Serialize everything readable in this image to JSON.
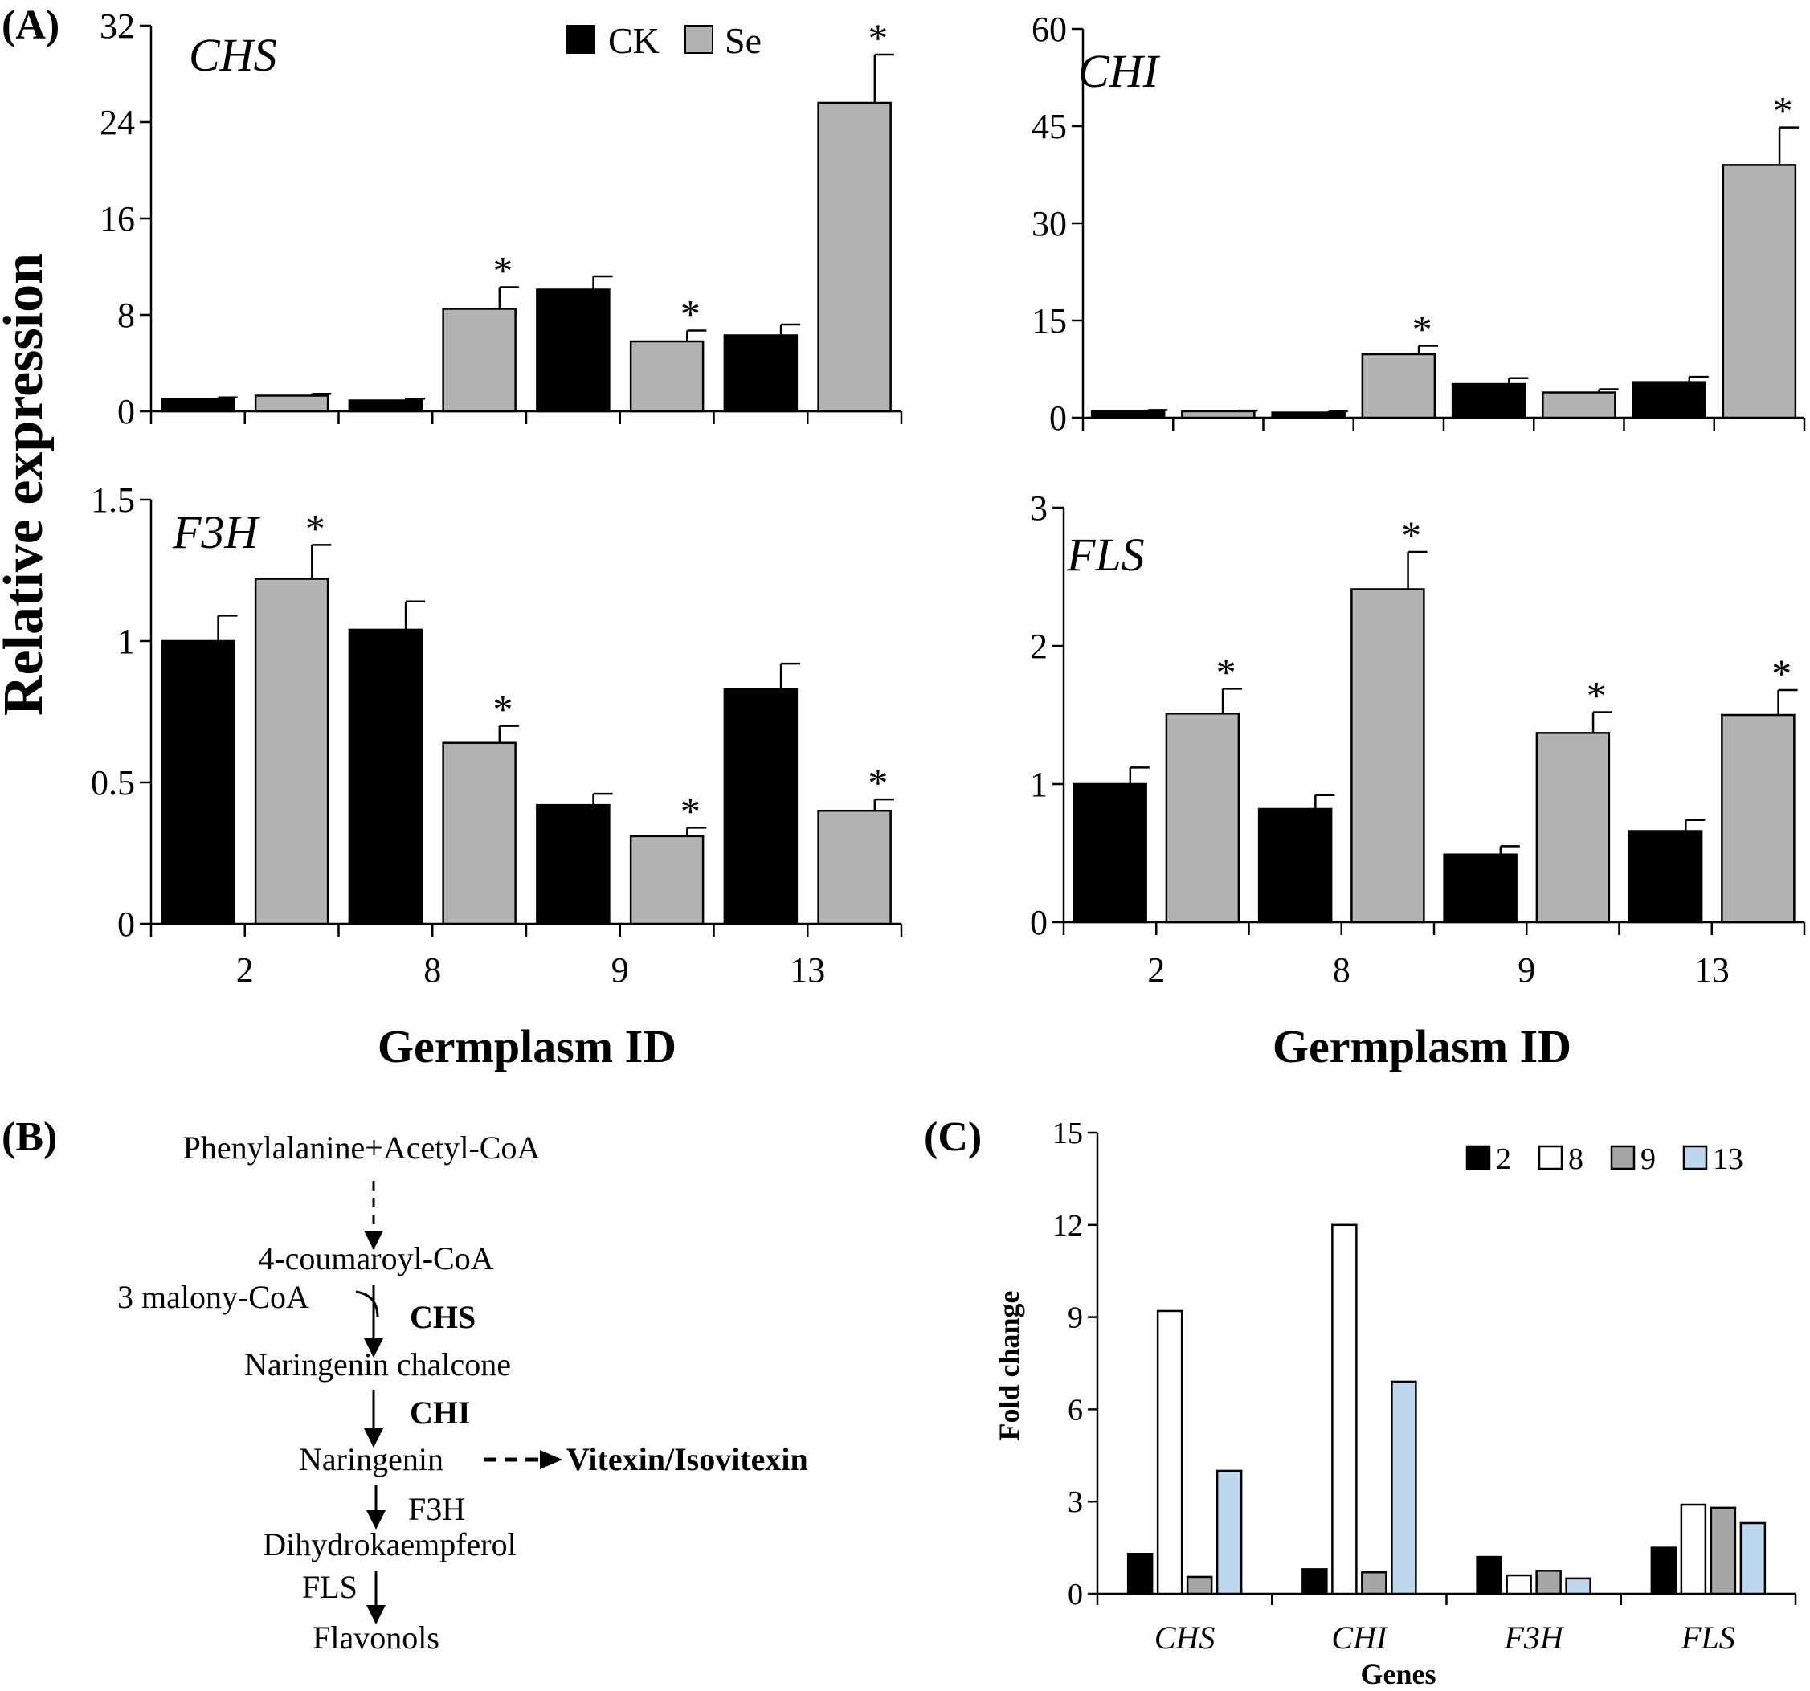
{
  "panel_labels": {
    "a": "(A)",
    "b": "(B)",
    "c": "(C)"
  },
  "panel_a": {
    "ylabel": "Relative expression",
    "xlabel": "Germplasm ID",
    "legend": [
      {
        "label": "CK",
        "color": "#000000"
      },
      {
        "label": "Se",
        "color": "#b3b3b3"
      }
    ]
  },
  "chart_data": [
    {
      "id": "chs",
      "type": "bar",
      "title": "CHS",
      "categories": [
        "2",
        "8",
        "9",
        "13"
      ],
      "yticks": [
        "0",
        "8",
        "16",
        "24",
        "32"
      ],
      "ylim": [
        0,
        32
      ],
      "series": [
        {
          "name": "CK",
          "color": "#000000",
          "values": [
            1.0,
            0.9,
            10.1,
            6.3
          ],
          "errors": [
            0.15,
            0.15,
            1.1,
            0.9
          ]
        },
        {
          "name": "Se",
          "color": "#b3b3b3",
          "values": [
            1.3,
            8.5,
            5.8,
            25.6
          ],
          "errors": [
            0.15,
            1.8,
            0.9,
            4.0
          ]
        }
      ],
      "significance": [
        {
          "series": "Se",
          "category": "8",
          "label": "*"
        },
        {
          "series": "Se",
          "category": "9",
          "label": "*"
        },
        {
          "series": "Se",
          "category": "13",
          "label": "*"
        }
      ]
    },
    {
      "id": "chi",
      "type": "bar",
      "title": "CHI",
      "categories": [
        "2",
        "8",
        "9",
        "13"
      ],
      "yticks": [
        "0",
        "15",
        "30",
        "45",
        "60"
      ],
      "ylim": [
        0,
        60
      ],
      "series": [
        {
          "name": "CK",
          "color": "#000000",
          "values": [
            1.0,
            0.8,
            5.2,
            5.5
          ],
          "errors": [
            0.2,
            0.2,
            0.9,
            0.8
          ]
        },
        {
          "name": "Se",
          "color": "#b3b3b3",
          "values": [
            1.0,
            9.8,
            3.9,
            39.0
          ],
          "errors": [
            0.1,
            1.3,
            0.5,
            5.8
          ]
        }
      ],
      "significance": [
        {
          "series": "Se",
          "category": "8",
          "label": "*"
        },
        {
          "series": "Se",
          "category": "13",
          "label": "*"
        }
      ]
    },
    {
      "id": "f3h",
      "type": "bar",
      "title": "F3H",
      "categories": [
        "2",
        "8",
        "9",
        "13"
      ],
      "yticks": [
        "0",
        "0.5",
        "1",
        "1.5"
      ],
      "ylim": [
        0,
        1.5
      ],
      "series": [
        {
          "name": "CK",
          "color": "#000000",
          "values": [
            1.0,
            1.04,
            0.42,
            0.83
          ],
          "errors": [
            0.09,
            0.1,
            0.04,
            0.09
          ]
        },
        {
          "name": "Se",
          "color": "#b3b3b3",
          "values": [
            1.22,
            0.64,
            0.31,
            0.4
          ],
          "errors": [
            0.12,
            0.06,
            0.03,
            0.04
          ]
        }
      ],
      "significance": [
        {
          "series": "Se",
          "category": "2",
          "label": "*"
        },
        {
          "series": "Se",
          "category": "8",
          "label": "*"
        },
        {
          "series": "Se",
          "category": "9",
          "label": "*"
        },
        {
          "series": "Se",
          "category": "13",
          "label": "*"
        }
      ]
    },
    {
      "id": "fls",
      "type": "bar",
      "title": "FLS",
      "categories": [
        "2",
        "8",
        "9",
        "13"
      ],
      "yticks": [
        "0",
        "1",
        "2",
        "3"
      ],
      "ylim": [
        0,
        3
      ],
      "series": [
        {
          "name": "CK",
          "color": "#000000",
          "values": [
            1.0,
            0.82,
            0.49,
            0.66
          ],
          "errors": [
            0.12,
            0.1,
            0.06,
            0.08
          ]
        },
        {
          "name": "Se",
          "color": "#b3b3b3",
          "values": [
            1.51,
            2.41,
            1.37,
            1.5
          ],
          "errors": [
            0.18,
            0.27,
            0.15,
            0.18
          ]
        }
      ],
      "significance": [
        {
          "series": "Se",
          "category": "2",
          "label": "*"
        },
        {
          "series": "Se",
          "category": "8",
          "label": "*"
        },
        {
          "series": "Se",
          "category": "9",
          "label": "*"
        },
        {
          "series": "Se",
          "category": "13",
          "label": "*"
        }
      ]
    },
    {
      "id": "fold",
      "type": "bar",
      "title": "",
      "xlabel": "Genes",
      "ylabel": "Fold change",
      "categories": [
        "CHS",
        "CHI",
        "F3H",
        "FLS"
      ],
      "yticks": [
        "0",
        "3",
        "6",
        "9",
        "12",
        "15"
      ],
      "ylim": [
        0,
        15
      ],
      "series": [
        {
          "name": "2",
          "color": "#000000",
          "values": [
            1.3,
            0.8,
            1.2,
            1.5
          ]
        },
        {
          "name": "8",
          "color": "#ffffff",
          "values": [
            9.2,
            12.0,
            0.6,
            2.9
          ]
        },
        {
          "name": "9",
          "color": "#a6a6a6",
          "values": [
            0.55,
            0.7,
            0.75,
            2.8
          ]
        },
        {
          "name": "13",
          "color": "#bdd7ee",
          "values": [
            4.0,
            6.9,
            0.5,
            2.3
          ]
        }
      ]
    }
  ],
  "pathway": {
    "start": "Phenylalanine+Acetyl-CoA",
    "coumaroyl": "4-coumaroyl-CoA",
    "malonyl": "3 malony-CoA",
    "chs": "CHS",
    "chalcone": "Naringenin chalcone",
    "chi": "CHI",
    "naringenin": "Naringenin",
    "vitexin": "Vitexin/Isovitexin",
    "f3h": "F3H",
    "dihydro": "Dihydrokaempferol",
    "fls": "FLS",
    "flavonols": "Flavonols"
  }
}
